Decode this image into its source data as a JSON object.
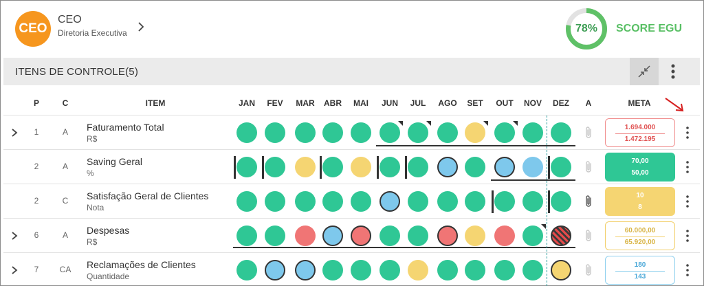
{
  "header": {
    "avatar_text": "CEO",
    "title": "CEO",
    "subtitle": "Diretoria Executiva",
    "score_percent": "78%",
    "score_value": 0.78,
    "score_label": "SCORE EGU"
  },
  "section": {
    "title": "ITENS DE CONTROLE(5)"
  },
  "columns": {
    "p": "P",
    "c": "C",
    "item": "ITEM",
    "months": [
      "JAN",
      "FEV",
      "MAR",
      "ABR",
      "MAI",
      "JUN",
      "JUL",
      "AGO",
      "SET",
      "OUT",
      "NOV",
      "DEZ"
    ],
    "a": "A",
    "meta": "META"
  },
  "colors": {
    "green": "#2fc795",
    "yellow": "#f5d572",
    "red": "#f07575",
    "blue": "#7ec8ec",
    "score_ring": "#5fc167",
    "avatar": "#f6961e"
  },
  "rows": [
    {
      "expandable": true,
      "p": "1",
      "c": "A",
      "name": "Faturamento Total",
      "unit": "R$",
      "months": [
        {
          "color": "green"
        },
        {
          "color": "green"
        },
        {
          "color": "green"
        },
        {
          "color": "green"
        },
        {
          "color": "green"
        },
        {
          "color": "green",
          "corner": true
        },
        {
          "color": "green",
          "corner": true
        },
        {
          "color": "green"
        },
        {
          "color": "yellow",
          "corner": true
        },
        {
          "color": "green",
          "corner": true
        },
        {
          "color": "green"
        },
        {
          "color": "green"
        }
      ],
      "bracket": {
        "from": 5,
        "to": 11
      },
      "has_attachment": false,
      "meta": {
        "style": "red",
        "v1": "1.694.000",
        "v2": "1.472.195"
      }
    },
    {
      "expandable": false,
      "p": "2",
      "c": "A",
      "name": "Saving Geral",
      "unit": "%",
      "months": [
        {
          "color": "green",
          "bar": true
        },
        {
          "color": "green",
          "bar": true
        },
        {
          "color": "yellow"
        },
        {
          "color": "green",
          "bar": true
        },
        {
          "color": "yellow"
        },
        {
          "color": "green",
          "bar": true
        },
        {
          "color": "green",
          "bar": true
        },
        {
          "color": "blue",
          "ring": true
        },
        {
          "color": "green"
        },
        {
          "color": "blue",
          "ring": true
        },
        {
          "color": "blue"
        },
        {
          "color": "green",
          "bar": true
        }
      ],
      "bracket": {
        "from": 9,
        "to": 11
      },
      "has_attachment": false,
      "meta": {
        "style": "green",
        "v1": "70,00",
        "v2": "50,00"
      }
    },
    {
      "expandable": false,
      "p": "2",
      "c": "C",
      "name": "Satisfação Geral de Clientes",
      "unit": "Nota",
      "months": [
        {
          "color": "green"
        },
        {
          "color": "green"
        },
        {
          "color": "green"
        },
        {
          "color": "green"
        },
        {
          "color": "green"
        },
        {
          "color": "blue",
          "ring": true
        },
        {
          "color": "green"
        },
        {
          "color": "green"
        },
        {
          "color": "green"
        },
        {
          "color": "green",
          "bar": true
        },
        {
          "color": "green"
        },
        {
          "color": "green",
          "bar": true
        }
      ],
      "bracket": null,
      "has_attachment": true,
      "meta": {
        "style": "yellow",
        "v1": "10",
        "v2": "8"
      }
    },
    {
      "expandable": true,
      "p": "6",
      "c": "A",
      "name": "Despesas",
      "unit": "R$",
      "months": [
        {
          "color": "green"
        },
        {
          "color": "green"
        },
        {
          "color": "red"
        },
        {
          "color": "blue",
          "ring": true
        },
        {
          "color": "red",
          "ring": true
        },
        {
          "color": "green"
        },
        {
          "color": "green"
        },
        {
          "color": "red",
          "ring": true
        },
        {
          "color": "yellow"
        },
        {
          "color": "red"
        },
        {
          "color": "green",
          "corner": true
        },
        {
          "color": "red",
          "hatched": true
        }
      ],
      "bracket": {
        "from": 0,
        "to": 11
      },
      "has_attachment": false,
      "meta": {
        "style": "yellow-o",
        "v1": "60.000,00",
        "v2": "65.920,00"
      }
    },
    {
      "expandable": true,
      "p": "7",
      "c": "CA",
      "name": "Reclamações de Clientes",
      "unit": "Quantidade",
      "months": [
        {
          "color": "green"
        },
        {
          "color": "blue",
          "ring": true
        },
        {
          "color": "blue",
          "ring": true
        },
        {
          "color": "green"
        },
        {
          "color": "green"
        },
        {
          "color": "green"
        },
        {
          "color": "yellow"
        },
        {
          "color": "green"
        },
        {
          "color": "green"
        },
        {
          "color": "green"
        },
        {
          "color": "green"
        },
        {
          "color": "yellow",
          "ring": true
        }
      ],
      "bracket": null,
      "has_attachment": false,
      "meta": {
        "style": "blue-o",
        "v1": "180",
        "v2": "143"
      }
    }
  ]
}
